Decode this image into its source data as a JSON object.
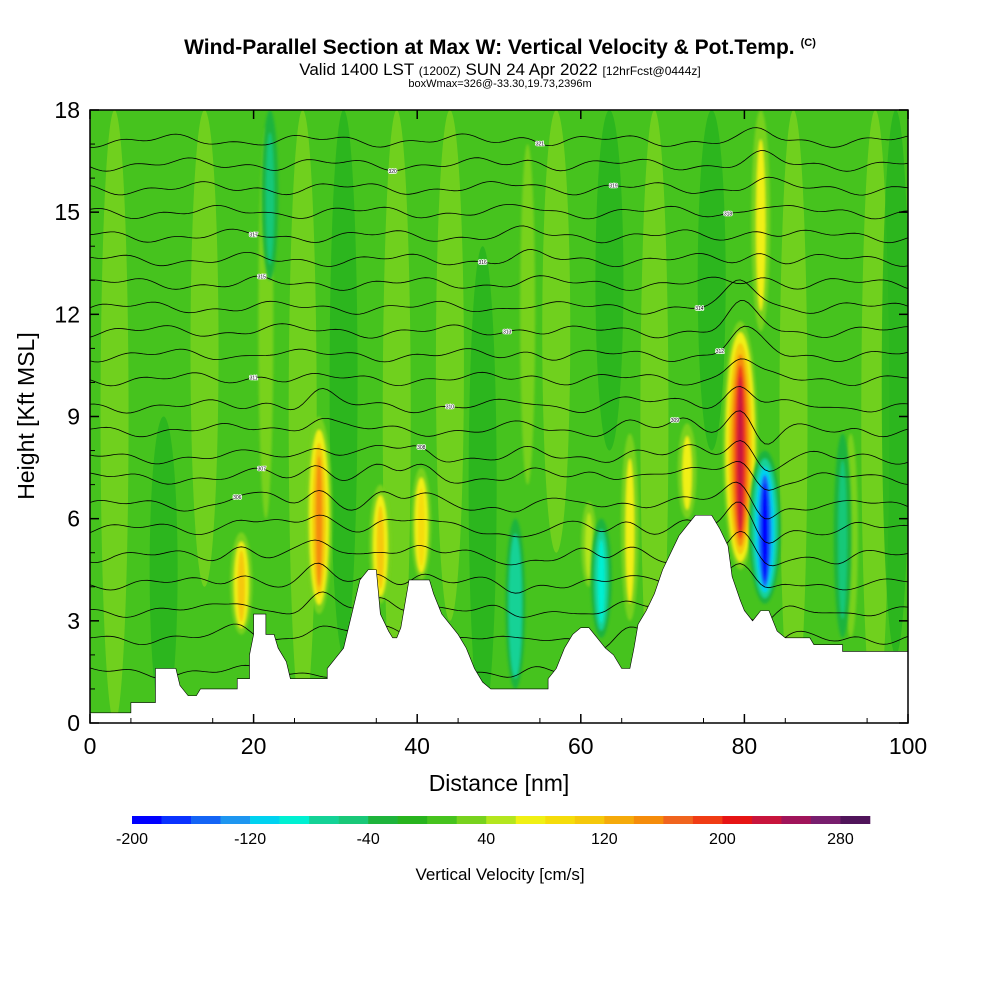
{
  "header": {
    "title": "Wind-Parallel Section at Max W: Vertical Velocity & Pot.Temp.",
    "copyright": "(C)",
    "valid_prefix": "Valid 1400 LST",
    "valid_utc": "(1200Z)",
    "valid_date": "SUN 24 Apr 2022",
    "forecast_info": "[12hrFcst@0444z]",
    "box_info": "boxWmax=326@-33.30,19.73,2396m"
  },
  "chart_data": {
    "type": "heatmap",
    "title": "Wind-Parallel Section at Max W: Vertical Velocity & Pot.Temp.",
    "xlabel": "Distance [nm]",
    "ylabel": "Height [Kft MSL]",
    "xlim": [
      0,
      100
    ],
    "ylim": [
      0,
      18
    ],
    "x_ticks": [
      0,
      20,
      40,
      60,
      80,
      100
    ],
    "y_ticks": [
      0,
      3,
      6,
      9,
      12,
      15,
      18
    ],
    "colorbar": {
      "label": "Vertical Velocity [cm/s]",
      "tick_labels": [
        "-200",
        "-120",
        "-40",
        "40",
        "120",
        "200",
        "280"
      ],
      "range": [
        -200,
        300
      ],
      "step": 20,
      "colors": [
        "#0000ff",
        "#0a32ff",
        "#1464f5",
        "#1e96f0",
        "#00d2f0",
        "#00f0d2",
        "#14d296",
        "#19c878",
        "#1eb43c",
        "#28b41e",
        "#46c31e",
        "#78d21e",
        "#b4e61e",
        "#f0f014",
        "#f5dc0a",
        "#f5c80a",
        "#f5aa0a",
        "#f58c0a",
        "#f0641e",
        "#f03c14",
        "#e61414",
        "#c8143c",
        "#a0145a",
        "#781e6e",
        "#50145a"
      ]
    },
    "updrafts": [
      {
        "x": 18.5,
        "z_bottom": 2.6,
        "z_top": 5.6,
        "w": 110
      },
      {
        "x": 21.5,
        "z_bottom": 6.0,
        "z_top": 17.5,
        "w": 45
      },
      {
        "x": 28.0,
        "z_bottom": 3.2,
        "z_top": 9.0,
        "w": 150
      },
      {
        "x": 35.5,
        "z_bottom": 3.5,
        "z_top": 7.0,
        "w": 110
      },
      {
        "x": 40.5,
        "z_bottom": 4.2,
        "z_top": 7.5,
        "w": 90
      },
      {
        "x": 53.5,
        "z_bottom": 7.0,
        "z_top": 17.0,
        "w": 45
      },
      {
        "x": 61.0,
        "z_bottom": 4.0,
        "z_top": 6.5,
        "w": 50
      },
      {
        "x": 66.0,
        "z_bottom": 3.0,
        "z_top": 8.5,
        "w": 70
      },
      {
        "x": 73.0,
        "z_bottom": 6.0,
        "z_top": 8.8,
        "w": 80
      },
      {
        "x": 79.5,
        "z_bottom": 4.5,
        "z_top": 11.8,
        "w": 230
      },
      {
        "x": 82.0,
        "z_bottom": 11.5,
        "z_top": 18.0,
        "w": 80
      },
      {
        "x": 93.0,
        "z_bottom": 2.5,
        "z_top": 8.5,
        "w": 40
      }
    ],
    "downdrafts": [
      {
        "x": 22.0,
        "z_bottom": 13.0,
        "z_top": 18.0,
        "w": -60
      },
      {
        "x": 52.0,
        "z_bottom": 1.0,
        "z_top": 6.0,
        "w": -90
      },
      {
        "x": 62.5,
        "z_bottom": 2.5,
        "z_top": 6.0,
        "w": -100
      },
      {
        "x": 82.5,
        "z_bottom": 3.5,
        "z_top": 8.0,
        "w": -200
      },
      {
        "x": 92.0,
        "z_bottom": 2.5,
        "z_top": 8.5,
        "w": -70
      }
    ],
    "terrain_kft": [
      [
        0,
        0.3
      ],
      [
        5,
        0.3
      ],
      [
        5,
        0.6
      ],
      [
        8,
        0.6
      ],
      [
        8,
        1.6
      ],
      [
        10.5,
        1.6
      ],
      [
        11,
        1.1
      ],
      [
        12,
        0.8
      ],
      [
        13,
        0.8
      ],
      [
        13.5,
        1.0
      ],
      [
        18,
        1.0
      ],
      [
        18,
        1.3
      ],
      [
        19.5,
        1.3
      ],
      [
        19.5,
        2.0
      ],
      [
        20,
        2.6
      ],
      [
        20,
        3.2
      ],
      [
        21.5,
        3.2
      ],
      [
        21.5,
        2.6
      ],
      [
        22.5,
        2.6
      ],
      [
        23,
        2.2
      ],
      [
        24,
        1.8
      ],
      [
        24.5,
        1.3
      ],
      [
        29,
        1.3
      ],
      [
        29,
        1.6
      ],
      [
        30,
        1.9
      ],
      [
        31,
        2.2
      ],
      [
        32,
        3.2
      ],
      [
        33,
        4.2
      ],
      [
        34,
        4.5
      ],
      [
        35,
        4.5
      ],
      [
        35.5,
        3.2
      ],
      [
        36.5,
        2.7
      ],
      [
        37,
        2.5
      ],
      [
        37.5,
        2.5
      ],
      [
        38,
        2.8
      ],
      [
        38.5,
        3.5
      ],
      [
        39,
        4.2
      ],
      [
        41.5,
        4.2
      ],
      [
        42,
        3.8
      ],
      [
        43,
        3.2
      ],
      [
        44,
        2.9
      ],
      [
        45,
        2.6
      ],
      [
        46,
        2.2
      ],
      [
        47,
        1.6
      ],
      [
        48,
        1.2
      ],
      [
        49,
        1.0
      ],
      [
        56,
        1.0
      ],
      [
        56,
        1.3
      ],
      [
        57,
        1.6
      ],
      [
        58,
        2.2
      ],
      [
        59,
        2.6
      ],
      [
        60,
        2.8
      ],
      [
        61,
        2.8
      ],
      [
        62,
        2.5
      ],
      [
        63,
        2.2
      ],
      [
        64,
        2.0
      ],
      [
        65,
        1.6
      ],
      [
        66,
        1.6
      ],
      [
        66.5,
        2.2
      ],
      [
        67,
        2.9
      ],
      [
        68,
        3.3
      ],
      [
        69,
        3.8
      ],
      [
        70,
        4.5
      ],
      [
        71,
        5.0
      ],
      [
        72,
        5.5
      ],
      [
        73,
        5.8
      ],
      [
        74,
        6.1
      ],
      [
        76,
        6.1
      ],
      [
        77,
        5.7
      ],
      [
        78,
        5.2
      ],
      [
        78.5,
        4.3
      ],
      [
        79.5,
        3.6
      ],
      [
        80,
        3.3
      ],
      [
        81,
        3.0
      ],
      [
        82,
        3.3
      ],
      [
        83,
        3.3
      ],
      [
        83.5,
        3.0
      ],
      [
        84,
        2.7
      ],
      [
        85,
        2.5
      ],
      [
        88,
        2.5
      ],
      [
        88.5,
        2.3
      ],
      [
        92,
        2.3
      ],
      [
        92,
        2.1
      ],
      [
        100,
        2.1
      ]
    ],
    "theta_contours": [
      {
        "z": 1.5,
        "label": ""
      },
      {
        "z": 2.5,
        "label": ""
      },
      {
        "z": 3.3,
        "label": ""
      },
      {
        "z": 4.1,
        "label": ""
      },
      {
        "z": 4.9,
        "label": ""
      },
      {
        "z": 5.7,
        "label": ""
      },
      {
        "z": 6.4,
        "label": "306"
      },
      {
        "z": 7.2,
        "label": "307"
      },
      {
        "z": 7.8,
        "label": "308"
      },
      {
        "z": 8.6,
        "label": "309"
      },
      {
        "z": 9.3,
        "label": "310"
      },
      {
        "z": 10.1,
        "label": "311"
      },
      {
        "z": 10.8,
        "label": "312"
      },
      {
        "z": 11.5,
        "label": "313"
      },
      {
        "z": 12.2,
        "label": "314"
      },
      {
        "z": 12.9,
        "label": "315"
      },
      {
        "z": 13.6,
        "label": "316"
      },
      {
        "z": 14.3,
        "label": "317"
      },
      {
        "z": 15.0,
        "label": "318"
      },
      {
        "z": 15.7,
        "label": "319"
      },
      {
        "z": 16.4,
        "label": "320"
      },
      {
        "z": 17.1,
        "label": "321"
      }
    ]
  }
}
